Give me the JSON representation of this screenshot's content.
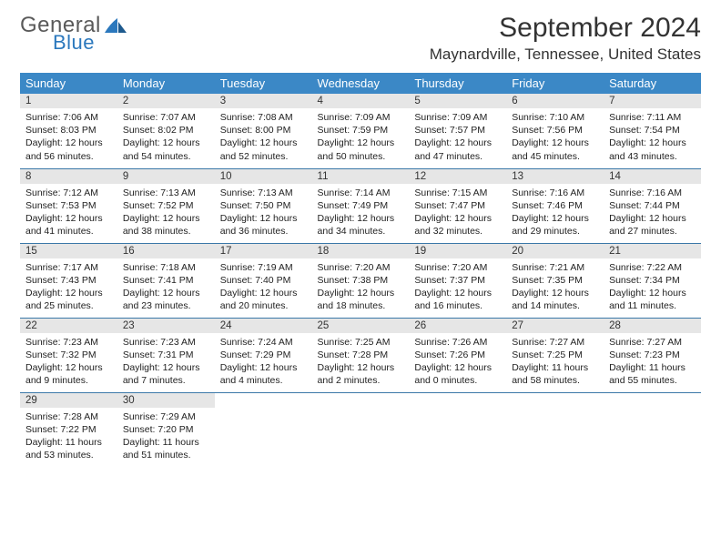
{
  "logo": {
    "general": "General",
    "blue": "Blue"
  },
  "title": "September 2024",
  "location": "Maynardville, Tennessee, United States",
  "colors": {
    "header_bg": "#3b88c6",
    "header_text": "#ffffff",
    "daynum_bg": "#e6e6e6",
    "rule": "#3b78a8",
    "logo_general": "#5a5a5a",
    "logo_blue": "#2b78bd"
  },
  "weekdays": [
    "Sunday",
    "Monday",
    "Tuesday",
    "Wednesday",
    "Thursday",
    "Friday",
    "Saturday"
  ],
  "days": [
    {
      "n": "1",
      "sunrise": "Sunrise: 7:06 AM",
      "sunset": "Sunset: 8:03 PM",
      "d1": "Daylight: 12 hours",
      "d2": "and 56 minutes."
    },
    {
      "n": "2",
      "sunrise": "Sunrise: 7:07 AM",
      "sunset": "Sunset: 8:02 PM",
      "d1": "Daylight: 12 hours",
      "d2": "and 54 minutes."
    },
    {
      "n": "3",
      "sunrise": "Sunrise: 7:08 AM",
      "sunset": "Sunset: 8:00 PM",
      "d1": "Daylight: 12 hours",
      "d2": "and 52 minutes."
    },
    {
      "n": "4",
      "sunrise": "Sunrise: 7:09 AM",
      "sunset": "Sunset: 7:59 PM",
      "d1": "Daylight: 12 hours",
      "d2": "and 50 minutes."
    },
    {
      "n": "5",
      "sunrise": "Sunrise: 7:09 AM",
      "sunset": "Sunset: 7:57 PM",
      "d1": "Daylight: 12 hours",
      "d2": "and 47 minutes."
    },
    {
      "n": "6",
      "sunrise": "Sunrise: 7:10 AM",
      "sunset": "Sunset: 7:56 PM",
      "d1": "Daylight: 12 hours",
      "d2": "and 45 minutes."
    },
    {
      "n": "7",
      "sunrise": "Sunrise: 7:11 AM",
      "sunset": "Sunset: 7:54 PM",
      "d1": "Daylight: 12 hours",
      "d2": "and 43 minutes."
    },
    {
      "n": "8",
      "sunrise": "Sunrise: 7:12 AM",
      "sunset": "Sunset: 7:53 PM",
      "d1": "Daylight: 12 hours",
      "d2": "and 41 minutes."
    },
    {
      "n": "9",
      "sunrise": "Sunrise: 7:13 AM",
      "sunset": "Sunset: 7:52 PM",
      "d1": "Daylight: 12 hours",
      "d2": "and 38 minutes."
    },
    {
      "n": "10",
      "sunrise": "Sunrise: 7:13 AM",
      "sunset": "Sunset: 7:50 PM",
      "d1": "Daylight: 12 hours",
      "d2": "and 36 minutes."
    },
    {
      "n": "11",
      "sunrise": "Sunrise: 7:14 AM",
      "sunset": "Sunset: 7:49 PM",
      "d1": "Daylight: 12 hours",
      "d2": "and 34 minutes."
    },
    {
      "n": "12",
      "sunrise": "Sunrise: 7:15 AM",
      "sunset": "Sunset: 7:47 PM",
      "d1": "Daylight: 12 hours",
      "d2": "and 32 minutes."
    },
    {
      "n": "13",
      "sunrise": "Sunrise: 7:16 AM",
      "sunset": "Sunset: 7:46 PM",
      "d1": "Daylight: 12 hours",
      "d2": "and 29 minutes."
    },
    {
      "n": "14",
      "sunrise": "Sunrise: 7:16 AM",
      "sunset": "Sunset: 7:44 PM",
      "d1": "Daylight: 12 hours",
      "d2": "and 27 minutes."
    },
    {
      "n": "15",
      "sunrise": "Sunrise: 7:17 AM",
      "sunset": "Sunset: 7:43 PM",
      "d1": "Daylight: 12 hours",
      "d2": "and 25 minutes."
    },
    {
      "n": "16",
      "sunrise": "Sunrise: 7:18 AM",
      "sunset": "Sunset: 7:41 PM",
      "d1": "Daylight: 12 hours",
      "d2": "and 23 minutes."
    },
    {
      "n": "17",
      "sunrise": "Sunrise: 7:19 AM",
      "sunset": "Sunset: 7:40 PM",
      "d1": "Daylight: 12 hours",
      "d2": "and 20 minutes."
    },
    {
      "n": "18",
      "sunrise": "Sunrise: 7:20 AM",
      "sunset": "Sunset: 7:38 PM",
      "d1": "Daylight: 12 hours",
      "d2": "and 18 minutes."
    },
    {
      "n": "19",
      "sunrise": "Sunrise: 7:20 AM",
      "sunset": "Sunset: 7:37 PM",
      "d1": "Daylight: 12 hours",
      "d2": "and 16 minutes."
    },
    {
      "n": "20",
      "sunrise": "Sunrise: 7:21 AM",
      "sunset": "Sunset: 7:35 PM",
      "d1": "Daylight: 12 hours",
      "d2": "and 14 minutes."
    },
    {
      "n": "21",
      "sunrise": "Sunrise: 7:22 AM",
      "sunset": "Sunset: 7:34 PM",
      "d1": "Daylight: 12 hours",
      "d2": "and 11 minutes."
    },
    {
      "n": "22",
      "sunrise": "Sunrise: 7:23 AM",
      "sunset": "Sunset: 7:32 PM",
      "d1": "Daylight: 12 hours",
      "d2": "and 9 minutes."
    },
    {
      "n": "23",
      "sunrise": "Sunrise: 7:23 AM",
      "sunset": "Sunset: 7:31 PM",
      "d1": "Daylight: 12 hours",
      "d2": "and 7 minutes."
    },
    {
      "n": "24",
      "sunrise": "Sunrise: 7:24 AM",
      "sunset": "Sunset: 7:29 PM",
      "d1": "Daylight: 12 hours",
      "d2": "and 4 minutes."
    },
    {
      "n": "25",
      "sunrise": "Sunrise: 7:25 AM",
      "sunset": "Sunset: 7:28 PM",
      "d1": "Daylight: 12 hours",
      "d2": "and 2 minutes."
    },
    {
      "n": "26",
      "sunrise": "Sunrise: 7:26 AM",
      "sunset": "Sunset: 7:26 PM",
      "d1": "Daylight: 12 hours",
      "d2": "and 0 minutes."
    },
    {
      "n": "27",
      "sunrise": "Sunrise: 7:27 AM",
      "sunset": "Sunset: 7:25 PM",
      "d1": "Daylight: 11 hours",
      "d2": "and 58 minutes."
    },
    {
      "n": "28",
      "sunrise": "Sunrise: 7:27 AM",
      "sunset": "Sunset: 7:23 PM",
      "d1": "Daylight: 11 hours",
      "d2": "and 55 minutes."
    },
    {
      "n": "29",
      "sunrise": "Sunrise: 7:28 AM",
      "sunset": "Sunset: 7:22 PM",
      "d1": "Daylight: 11 hours",
      "d2": "and 53 minutes."
    },
    {
      "n": "30",
      "sunrise": "Sunrise: 7:29 AM",
      "sunset": "Sunset: 7:20 PM",
      "d1": "Daylight: 11 hours",
      "d2": "and 51 minutes."
    }
  ]
}
